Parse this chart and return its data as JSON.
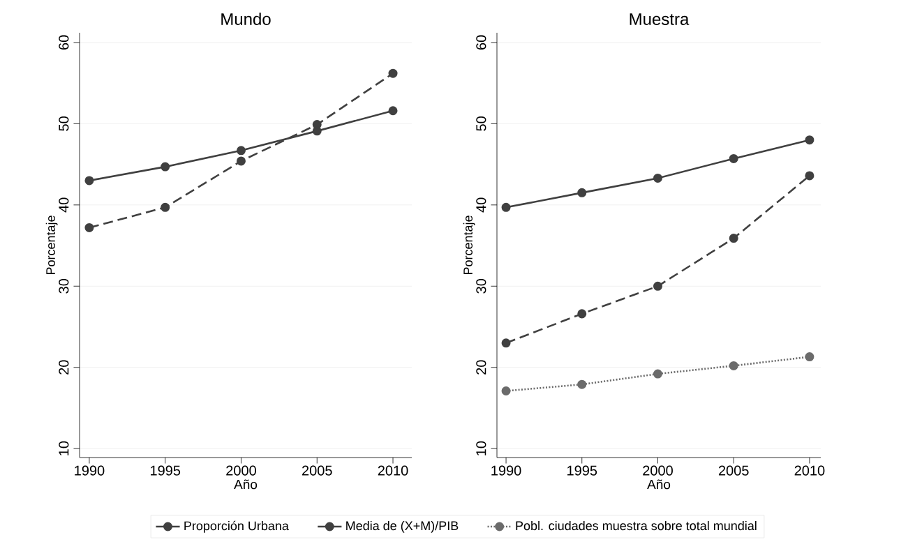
{
  "chart_data": [
    {
      "type": "line",
      "title": "Mundo",
      "xlabel": "Año",
      "ylabel": "Porcentaje",
      "x": [
        1990,
        1995,
        2000,
        2005,
        2010
      ],
      "xlim": [
        1989.36,
        2011.24
      ],
      "ylim": [
        8.9,
        61.2
      ],
      "xticks": [
        1990,
        1995,
        2000,
        2005,
        2010
      ],
      "yticks": [
        10,
        20,
        30,
        40,
        50,
        60
      ],
      "grid": "y",
      "marker": "circle",
      "series": [
        {
          "color": "#404040",
          "line_style": "solid",
          "values": [
            43.0,
            44.7,
            46.7,
            49.1,
            51.6
          ]
        },
        {
          "color": "#404040",
          "line_style": "dashed",
          "values": [
            37.2,
            39.7,
            45.4,
            49.9,
            56.2
          ]
        }
      ]
    },
    {
      "type": "line",
      "title": "Muestra",
      "xlabel": "Año",
      "ylabel": "Porcentaje",
      "x": [
        1990,
        1995,
        2000,
        2005,
        2010
      ],
      "xlim": [
        1989.4,
        2010.74
      ],
      "ylim": [
        8.9,
        61.2
      ],
      "xticks": [
        1990,
        1995,
        2000,
        2005,
        2010
      ],
      "yticks": [
        10,
        20,
        30,
        40,
        50,
        60
      ],
      "grid": "y",
      "marker": "circle",
      "legend": "bottom",
      "series": [
        {
          "name": "Proporción Urbana",
          "color": "#404040",
          "line_style": "solid",
          "values": [
            39.7,
            41.5,
            43.3,
            45.7,
            48.0
          ]
        },
        {
          "name": "Media de (X+M)/PIB",
          "color": "#404040",
          "line_style": "dashed",
          "values": [
            23.0,
            26.6,
            30.0,
            35.9,
            43.6
          ]
        },
        {
          "name": "Pobl. ciudades muestra sobre total mundial",
          "color": "#6b6b6b",
          "line_style": "dotted",
          "values": [
            17.1,
            17.9,
            19.2,
            20.2,
            21.3
          ]
        }
      ]
    }
  ]
}
